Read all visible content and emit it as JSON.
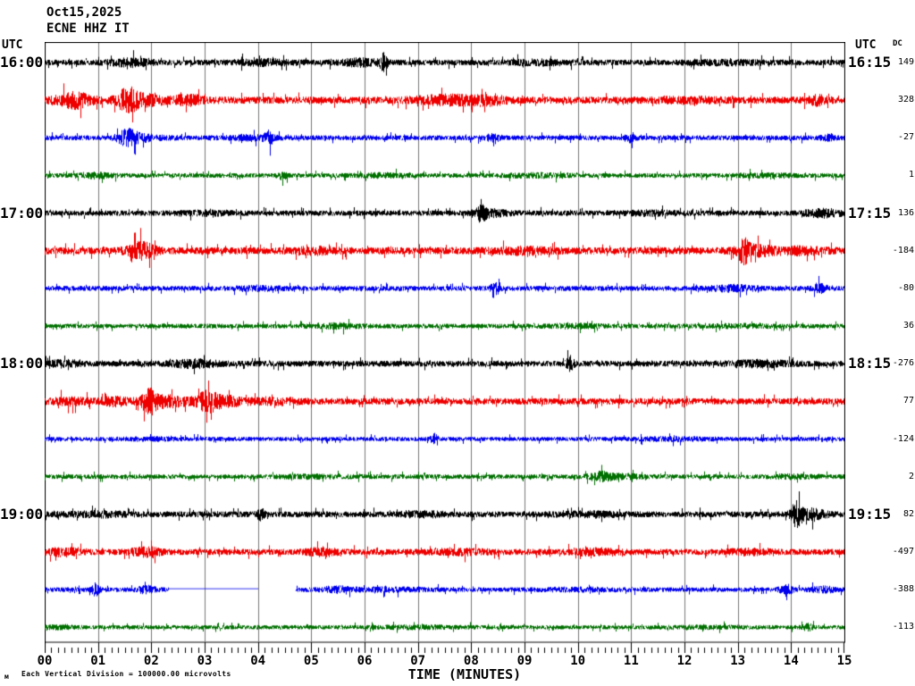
{
  "header": {
    "date": "Oct15,2025",
    "station": "ECNE HHZ IT"
  },
  "axes": {
    "utc_left": "UTC",
    "utc_right": "UTC",
    "dc_header": "DC",
    "x_label": "TIME (MINUTES)",
    "x_ticks": [
      "00",
      "01",
      "02",
      "03",
      "04",
      "05",
      "06",
      "07",
      "08",
      "09",
      "10",
      "11",
      "12",
      "13",
      "14",
      "15"
    ]
  },
  "footer": {
    "note": "Each Vertical Division = 100000.00 microvolts",
    "watermark": "м"
  },
  "chart_data": {
    "type": "line",
    "subtype": "helicorder-seismogram",
    "title": "ECNE HHZ IT  Oct15,2025",
    "xlabel": "TIME (MINUTES)",
    "x_range_minutes": [
      0,
      15
    ],
    "x_major_tick_minutes": 1,
    "x_minor_intervals_per_major": 8,
    "grid": "vertical-only",
    "legend_position": "none",
    "vertical_division_microvolts": 100000.0,
    "colors": {
      "black": "#000000",
      "red": "#ee0000",
      "blue": "#0000ee",
      "green": "#007000",
      "grid": "#777777",
      "frame": "#000000"
    },
    "rows": [
      {
        "color": "black",
        "left_label": "16:00",
        "right_label": "16:15",
        "dc": 149,
        "base_amp": 3.2,
        "events": [
          [
            1.6,
            1.0,
            0.25
          ],
          [
            4.1,
            0.6,
            0.4
          ],
          [
            5.9,
            0.9,
            0.25
          ],
          [
            6.35,
            2.6,
            0.05
          ],
          [
            9.3,
            0.5,
            0.4
          ],
          [
            12.8,
            0.4,
            0.5
          ]
        ]
      },
      {
        "color": "red",
        "left_label": "",
        "right_label": "",
        "dc": 328,
        "base_amp": 4.0,
        "events": [
          [
            0.55,
            1.8,
            0.22
          ],
          [
            1.55,
            2.6,
            0.12
          ],
          [
            1.8,
            1.2,
            0.3
          ],
          [
            2.7,
            1.0,
            0.18
          ],
          [
            7.6,
            0.9,
            0.45
          ],
          [
            8.3,
            0.7,
            0.25
          ],
          [
            12.0,
            0.4,
            0.4
          ],
          [
            14.5,
            1.0,
            0.12
          ]
        ]
      },
      {
        "color": "blue",
        "left_label": "",
        "right_label": "",
        "dc": -27,
        "base_amp": 2.8,
        "events": [
          [
            1.55,
            2.4,
            0.12
          ],
          [
            1.8,
            1.0,
            0.3
          ],
          [
            3.9,
            0.7,
            0.3
          ],
          [
            4.2,
            2.0,
            0.05
          ],
          [
            8.4,
            1.0,
            0.1
          ],
          [
            11.0,
            1.6,
            0.05
          ],
          [
            14.7,
            0.8,
            0.1
          ]
        ]
      },
      {
        "color": "green",
        "left_label": "",
        "right_label": "",
        "dc": 1,
        "base_amp": 2.6,
        "events": [
          [
            1.0,
            0.8,
            0.2
          ],
          [
            4.45,
            1.4,
            0.06
          ],
          [
            6.3,
            0.5,
            0.3
          ],
          [
            9.2,
            0.5,
            0.4
          ],
          [
            13.5,
            0.4,
            0.4
          ]
        ]
      },
      {
        "color": "black",
        "left_label": "17:00",
        "right_label": "17:15",
        "dc": 136,
        "base_amp": 3.0,
        "events": [
          [
            3.0,
            0.4,
            0.4
          ],
          [
            8.2,
            2.4,
            0.06
          ],
          [
            8.35,
            0.9,
            0.25
          ],
          [
            11.4,
            0.5,
            0.35
          ],
          [
            14.6,
            1.1,
            0.25
          ]
        ]
      },
      {
        "color": "red",
        "left_label": "",
        "right_label": "",
        "dc": -184,
        "base_amp": 4.0,
        "events": [
          [
            1.8,
            2.0,
            0.18
          ],
          [
            5.1,
            0.5,
            0.3
          ],
          [
            9.0,
            0.5,
            0.4
          ],
          [
            13.1,
            2.6,
            0.07
          ],
          [
            13.35,
            1.1,
            0.25
          ],
          [
            14.2,
            0.6,
            0.3
          ]
        ]
      },
      {
        "color": "blue",
        "left_label": "",
        "right_label": "",
        "dc": -80,
        "base_amp": 2.8,
        "events": [
          [
            4.0,
            0.5,
            0.3
          ],
          [
            8.45,
            1.9,
            0.07
          ],
          [
            12.9,
            0.9,
            0.3
          ],
          [
            14.55,
            1.3,
            0.1
          ]
        ]
      },
      {
        "color": "green",
        "left_label": "",
        "right_label": "",
        "dc": 36,
        "base_amp": 2.6,
        "events": [
          [
            5.5,
            0.7,
            0.3
          ],
          [
            9.9,
            0.5,
            0.4
          ],
          [
            13.0,
            0.4,
            0.4
          ]
        ]
      },
      {
        "color": "black",
        "left_label": "18:00",
        "right_label": "18:15",
        "dc": -276,
        "base_amp": 3.3,
        "events": [
          [
            0.35,
            0.7,
            0.2
          ],
          [
            2.8,
            0.9,
            0.3
          ],
          [
            9.85,
            2.0,
            0.05
          ],
          [
            13.4,
            0.7,
            0.4
          ]
        ]
      },
      {
        "color": "red",
        "left_label": "",
        "right_label": "",
        "dc": 77,
        "base_amp": 3.6,
        "events": [
          [
            0.45,
            0.7,
            0.25
          ],
          [
            1.3,
            0.9,
            0.18
          ],
          [
            1.95,
            3.4,
            0.09
          ],
          [
            2.25,
            1.4,
            0.3
          ],
          [
            3.05,
            2.3,
            0.13
          ],
          [
            3.4,
            1.1,
            0.3
          ],
          [
            4.4,
            0.5,
            0.3
          ]
        ]
      },
      {
        "color": "blue",
        "left_label": "",
        "right_label": "",
        "dc": -124,
        "base_amp": 2.4,
        "events": [
          [
            2.0,
            0.4,
            0.4
          ],
          [
            7.3,
            1.7,
            0.05
          ],
          [
            11.8,
            0.5,
            0.5
          ]
        ]
      },
      {
        "color": "green",
        "left_label": "",
        "right_label": "",
        "dc": 2,
        "base_amp": 2.6,
        "events": [
          [
            5.0,
            0.4,
            0.5
          ],
          [
            10.4,
            1.4,
            0.14
          ],
          [
            10.8,
            0.7,
            0.3
          ],
          [
            14.0,
            0.5,
            0.3
          ]
        ]
      },
      {
        "color": "black",
        "left_label": "19:00",
        "right_label": "19:15",
        "dc": 82,
        "base_amp": 3.3,
        "events": [
          [
            1.0,
            0.5,
            0.4
          ],
          [
            4.05,
            1.6,
            0.05
          ],
          [
            7.1,
            0.5,
            0.3
          ],
          [
            10.2,
            0.5,
            0.4
          ],
          [
            14.1,
            3.6,
            0.07
          ],
          [
            14.35,
            1.4,
            0.2
          ]
        ]
      },
      {
        "color": "red",
        "left_label": "",
        "right_label": "",
        "dc": -497,
        "base_amp": 3.4,
        "events": [
          [
            0.35,
            0.9,
            0.2
          ],
          [
            1.9,
            1.1,
            0.2
          ],
          [
            5.2,
            0.9,
            0.2
          ],
          [
            7.8,
            0.5,
            0.4
          ],
          [
            10.3,
            0.7,
            0.3
          ],
          [
            13.2,
            0.5,
            0.3
          ]
        ]
      },
      {
        "color": "blue",
        "left_label": "",
        "right_label": "",
        "dc": -388,
        "base_amp": 2.6,
        "events": [
          [
            0.95,
            2.3,
            0.05
          ],
          [
            1.9,
            1.2,
            0.12
          ],
          [
            5.5,
            0.9,
            0.2
          ],
          [
            6.5,
            0.5,
            0.4
          ],
          [
            10.0,
            0.4,
            0.5
          ],
          [
            13.9,
            1.4,
            0.1
          ],
          [
            14.6,
            0.9,
            0.15
          ]
        ],
        "flat": [
          2.32,
          4.0
        ],
        "gap": [
          4.0,
          4.7
        ]
      },
      {
        "color": "green",
        "left_label": "",
        "right_label": "",
        "dc": -113,
        "base_amp": 2.4,
        "events": [
          [
            0.3,
            0.6,
            0.2
          ],
          [
            7.0,
            0.4,
            0.5
          ],
          [
            12.4,
            0.4,
            0.4
          ],
          [
            14.3,
            1.2,
            0.07
          ]
        ]
      }
    ]
  }
}
